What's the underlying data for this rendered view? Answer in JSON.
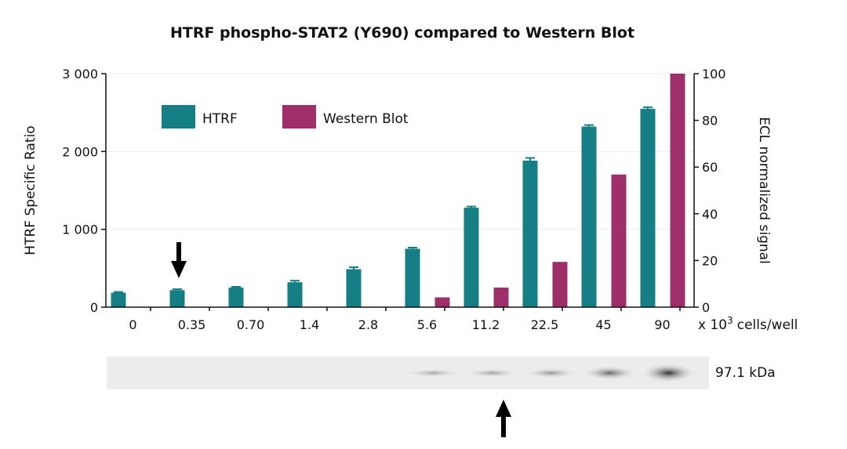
{
  "chart_data": {
    "type": "bar",
    "title": "HTRF phospho-STAT2 (Y690) compared to Western Blot",
    "xlabel": "x 10³ cells/well",
    "xlabel_base": "x 10",
    "xlabel_exp": "3",
    "xlabel_unit": "cells/well",
    "ylabel": "HTRF Specific Ratio",
    "y2label": "ECL normalized signal",
    "categories": [
      "0",
      "0.35",
      "0.70",
      "1.4",
      "2.8",
      "5.6",
      "11.2",
      "22.5",
      "45",
      "90"
    ],
    "ylim": [
      0,
      3000
    ],
    "y2lim": [
      0,
      100
    ],
    "yticks": [
      0,
      1000,
      2000,
      3000
    ],
    "ytick_labels": [
      "0",
      "1 000",
      "2 000",
      "3 000"
    ],
    "y2ticks": [
      0,
      20,
      40,
      60,
      80,
      100
    ],
    "y2tick_labels": [
      "0",
      "20",
      "40",
      "60",
      "80",
      "100"
    ],
    "grid": true,
    "legend": "top-left",
    "series": [
      {
        "name": "HTRF",
        "axis": "left",
        "color": "#157f85",
        "values": [
          186,
          219,
          252,
          320,
          488,
          750,
          1278,
          1883,
          2320,
          2549
        ],
        "errors": [
          10,
          12,
          10,
          20,
          25,
          15,
          15,
          35,
          20,
          20
        ]
      },
      {
        "name": "Western Blot",
        "axis": "right",
        "color": "#9e2f6a",
        "values": [
          null,
          null,
          null,
          null,
          null,
          4.2,
          8.4,
          19.4,
          56.8,
          100
        ]
      }
    ],
    "annotations": {
      "blot_label": "97.1 kDa",
      "arrow_htrf_category": "0.35",
      "arrow_wb_category": "11.2"
    }
  }
}
